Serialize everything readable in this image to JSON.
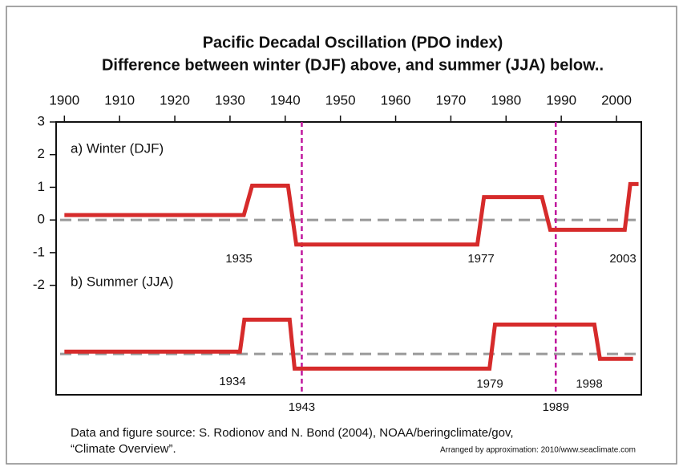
{
  "chart_data": {
    "type": "line",
    "title": "Pacific Decadal Oscillation (PDO index)",
    "subtitle": "Difference between winter (DJF) above, and summer (JJA) below..",
    "panel_labels": [
      "a) Winter (DJF)",
      "b)  Summer (JJA)"
    ],
    "xlim": [
      1898.5,
      2004.5
    ],
    "xticks": [
      1900,
      1910,
      1920,
      1930,
      1940,
      1950,
      1960,
      1970,
      1980,
      1990,
      2000
    ],
    "ylim": [
      -5.35,
      3
    ],
    "yticks": [
      3,
      2,
      1,
      0,
      -1,
      -2
    ],
    "hlines": [
      0,
      -4.1
    ],
    "vlines": [
      1943,
      1989
    ],
    "annotations": [
      "1935",
      "1977",
      "2003",
      "1934",
      "1979",
      "1998"
    ],
    "series": [
      {
        "name": "Winter (DJF)",
        "color": "#d62b2b",
        "x": [
          1900,
          1932.5,
          1934,
          1940.5,
          1942,
          1974.8,
          1976,
          1986.5,
          1988,
          2001.5,
          2002.5,
          2004
        ],
        "values": [
          0.15,
          0.15,
          1.05,
          1.05,
          -0.75,
          -0.75,
          0.7,
          0.7,
          -0.3,
          -0.3,
          1.1,
          1.1
        ]
      },
      {
        "name": "Summer (JJA)",
        "color": "#d62b2b",
        "x": [
          1900,
          1931.8,
          1932.6,
          1940.8,
          1941.7,
          1977,
          1978,
          1996,
          1997,
          2003
        ],
        "values": [
          -4.03,
          -4.03,
          -3.05,
          -3.05,
          -4.55,
          -4.55,
          -3.2,
          -3.2,
          -4.25,
          -4.25
        ]
      }
    ],
    "source": [
      "Data and figure source: S. Rodionov and N. Bond (2004), NOAA/beringclimate/gov,",
      "“Climate Overview”."
    ],
    "credit": "Arranged by approximation: 2010/www.seaclimate.com"
  }
}
